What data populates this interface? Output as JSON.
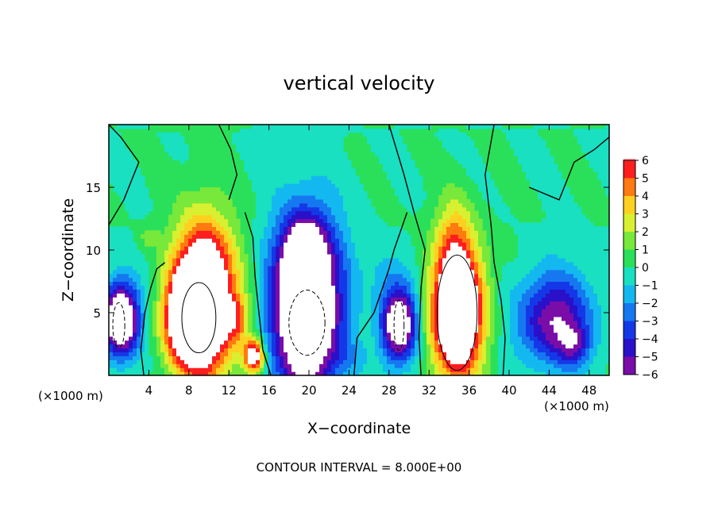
{
  "chart_data": {
    "type": "heatmap",
    "title": "vertical velocity",
    "xlabel": "X−coordinate",
    "ylabel": "Z−coordinate",
    "x_unit_label": "(×1000 m)",
    "footer": "CONTOUR INTERVAL = 8.000E+00",
    "xlim": [
      0,
      50
    ],
    "ylim": [
      0,
      20
    ],
    "x_ticks": [
      4,
      8,
      12,
      16,
      20,
      24,
      28,
      32,
      36,
      40,
      44,
      48
    ],
    "x_tick_labels": [
      "4",
      "8",
      "12",
      "16",
      "20",
      "24",
      "28",
      "32",
      "36",
      "40",
      "44",
      "48"
    ],
    "y_ticks": [
      5,
      10,
      15
    ],
    "y_tick_labels": [
      "5",
      "10",
      "15"
    ],
    "colorbar": {
      "levels": [
        -6,
        -5,
        -4,
        -3,
        -2,
        -1,
        0,
        1,
        2,
        3,
        4,
        5,
        6
      ],
      "labels": [
        "−6",
        "−5",
        "−4",
        "−3",
        "−2",
        "−1",
        "0",
        "1",
        "2",
        "3",
        "4",
        "5",
        "6"
      ],
      "colors": [
        "#7a0ca8",
        "#2a10c8",
        "#1438e8",
        "#1678f0",
        "#14b8f0",
        "#18e0c0",
        "#2ae05a",
        "#78e83a",
        "#d8f030",
        "#ffd020",
        "#ff7a10",
        "#ff1e1e",
        "#ffa0a0"
      ],
      "overflow_color": "#ffffff"
    },
    "features": [
      {
        "kind": "updraft",
        "x": 9.0,
        "z": 5.0,
        "peak": 14
      },
      {
        "kind": "downdraft",
        "x": 19.5,
        "z": 4.5,
        "peak": -14
      },
      {
        "kind": "downdraft",
        "x": 1.0,
        "z": 4.0,
        "peak": -12
      },
      {
        "kind": "updraft",
        "x": 14.5,
        "z": 1.5,
        "peak": 8
      },
      {
        "kind": "downdraft",
        "x": 29.0,
        "z": 4.0,
        "peak": -10
      },
      {
        "kind": "updraft",
        "x": 35.0,
        "z": 5.0,
        "peak": 14
      },
      {
        "kind": "downdraft",
        "x": 44.0,
        "z": 5.0,
        "peak": -8
      }
    ]
  }
}
